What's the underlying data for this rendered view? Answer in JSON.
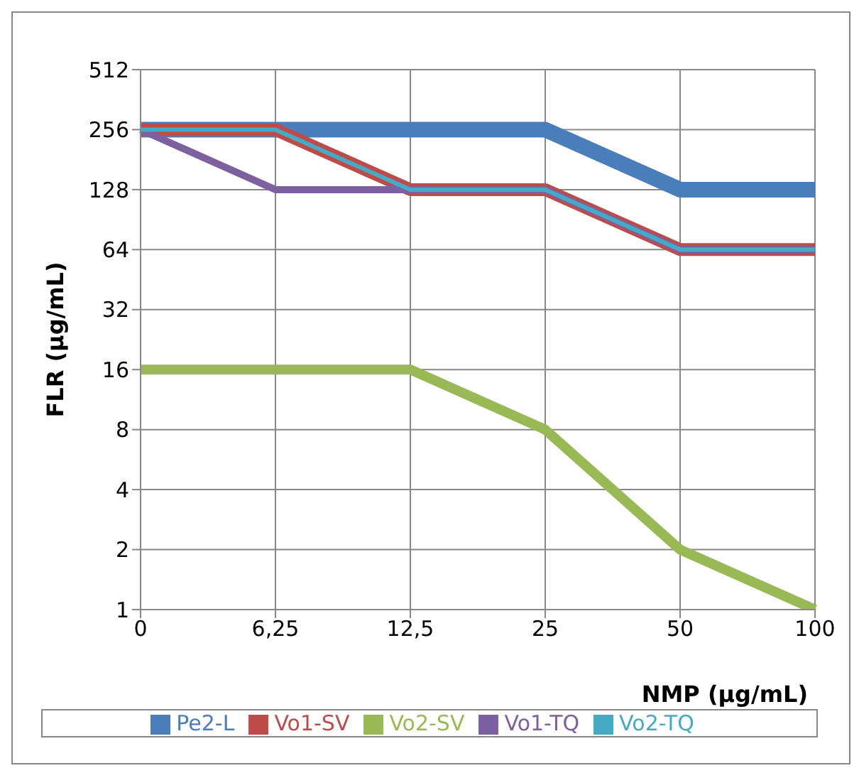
{
  "chart_data": {
    "type": "line",
    "xlabel": "NMP (µg/mL)",
    "ylabel": "FLR (µg/mL)",
    "categories": [
      "0",
      "6,25",
      "12,5",
      "25",
      "50",
      "100"
    ],
    "series": [
      {
        "name": "Pe2-L",
        "color": "#4a7ebb",
        "values": [
          256,
          256,
          256,
          256,
          128,
          128
        ]
      },
      {
        "name": "Vo1-SV",
        "color": "#be4b48",
        "values": [
          256,
          256,
          128,
          128,
          64,
          64
        ]
      },
      {
        "name": "Vo2-SV",
        "color": "#98b954",
        "values": [
          16,
          16,
          16,
          8,
          2,
          1
        ]
      },
      {
        "name": "Vo1-TQ",
        "color": "#7d60a0",
        "values": [
          256,
          128,
          128,
          128,
          64,
          64
        ]
      },
      {
        "name": "Vo2-TQ",
        "color": "#46aac5",
        "values": [
          256,
          256,
          128,
          128,
          64,
          64
        ]
      }
    ],
    "log": "y",
    "ylim": [
      1,
      512
    ],
    "yticks": [
      1,
      2,
      4,
      8,
      16,
      32,
      64,
      128,
      256,
      512
    ],
    "grid": true,
    "legend": "bottom",
    "marker": "none",
    "line_style": "solid"
  }
}
